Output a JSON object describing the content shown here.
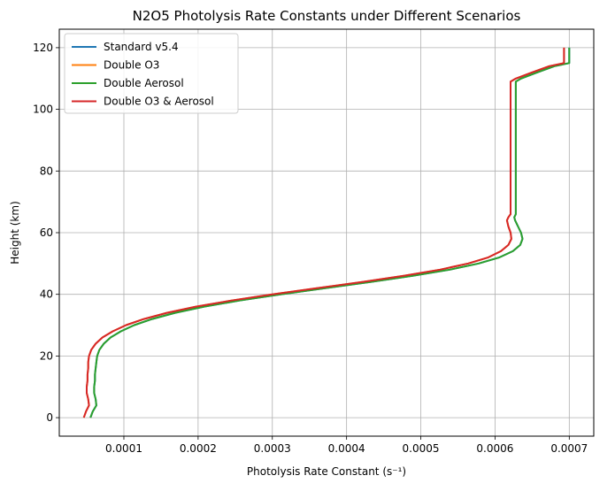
{
  "chart_data": {
    "type": "line",
    "title": "N2O5 Photolysis Rate Constants under Different Scenarios",
    "xlabel": "Photolysis Rate Constant (s⁻¹)",
    "ylabel": "Height (km)",
    "xlim": [
      1.3e-05,
      0.000733
    ],
    "ylim": [
      -6,
      126
    ],
    "xticks": [
      0.0001,
      0.0002,
      0.0003,
      0.0004,
      0.0005,
      0.0006,
      0.0007
    ],
    "xtick_labels": [
      "0.0001",
      "0.0002",
      "0.0003",
      "0.0004",
      "0.0005",
      "0.0006",
      "0.0007"
    ],
    "yticks": [
      0,
      20,
      40,
      60,
      80,
      100,
      120
    ],
    "ytick_labels": [
      "0",
      "20",
      "40",
      "60",
      "80",
      "100",
      "120"
    ],
    "grid": true,
    "legend_position": "upper-left",
    "y": [
      0,
      2,
      4,
      6,
      8,
      10,
      12,
      14,
      16,
      18,
      20,
      22,
      24,
      26,
      28,
      30,
      32,
      34,
      36,
      38,
      40,
      42,
      44,
      46,
      48,
      50,
      52,
      54,
      56,
      58,
      60,
      62,
      64,
      65,
      66,
      70,
      80,
      90,
      100,
      105,
      108,
      109,
      110,
      112,
      114,
      115,
      116,
      118,
      120
    ],
    "series": [
      {
        "name": "Standard v5.4",
        "color": "#1f77b4",
        "x": [
          5.5e-05,
          5.8e-05,
          6.3e-05,
          6.2e-05,
          6e-05,
          6e-05,
          6.1e-05,
          6.1e-05,
          6.2e-05,
          6.3e-05,
          6.4e-05,
          6.7e-05,
          7.3e-05,
          8.2e-05,
          9.6e-05,
          0.000114,
          0.000138,
          0.000169,
          0.000208,
          0.000256,
          0.000311,
          0.000371,
          0.000432,
          0.000489,
          0.000539,
          0.000578,
          0.000606,
          0.000624,
          0.000634,
          0.000637,
          0.000635,
          0.000631,
          0.000627,
          0.000626,
          0.000628,
          0.000628,
          0.000628,
          0.000628,
          0.000628,
          0.000628,
          0.000628,
          0.000628,
          0.000635,
          0.000657,
          0.00068,
          0.0007,
          0.0007,
          0.0007,
          0.0007
        ]
      },
      {
        "name": "Double O3",
        "color": "#ff7f0e",
        "x": [
          4.6e-05,
          4.9e-05,
          5.3e-05,
          5.2e-05,
          5e-05,
          5e-05,
          5.1e-05,
          5.1e-05,
          5.2e-05,
          5.2e-05,
          5.3e-05,
          5.6e-05,
          6.2e-05,
          7.1e-05,
          8.5e-05,
          0.000103,
          0.000127,
          0.000158,
          0.000197,
          0.000245,
          0.0003,
          0.00036,
          0.000421,
          0.000477,
          0.000526,
          0.000564,
          0.000591,
          0.000608,
          0.000618,
          0.000622,
          0.000621,
          0.000618,
          0.000616,
          0.000618,
          0.000621,
          0.000621,
          0.000621,
          0.000621,
          0.000621,
          0.000621,
          0.000621,
          0.000621,
          0.000628,
          0.00065,
          0.000673,
          0.000693,
          0.000693,
          0.000693,
          0.000693
        ]
      },
      {
        "name": "Double Aerosol",
        "color": "#2ca02c",
        "x": [
          5.5e-05,
          5.8e-05,
          6.3e-05,
          6.2e-05,
          6e-05,
          6e-05,
          6.1e-05,
          6.1e-05,
          6.2e-05,
          6.3e-05,
          6.4e-05,
          6.7e-05,
          7.3e-05,
          8.2e-05,
          9.6e-05,
          0.000114,
          0.000138,
          0.000169,
          0.000208,
          0.000256,
          0.000311,
          0.000371,
          0.000432,
          0.000489,
          0.000539,
          0.000578,
          0.000606,
          0.000624,
          0.000634,
          0.000637,
          0.000635,
          0.000631,
          0.000627,
          0.000626,
          0.000628,
          0.000628,
          0.000628,
          0.000628,
          0.000628,
          0.000628,
          0.000628,
          0.000628,
          0.000635,
          0.000657,
          0.00068,
          0.0007,
          0.0007,
          0.0007,
          0.0007
        ]
      },
      {
        "name": "Double O3 & Aerosol",
        "color": "#d62728",
        "x": [
          4.6e-05,
          4.9e-05,
          5.3e-05,
          5.2e-05,
          5e-05,
          5e-05,
          5.1e-05,
          5.1e-05,
          5.2e-05,
          5.2e-05,
          5.3e-05,
          5.6e-05,
          6.2e-05,
          7.1e-05,
          8.5e-05,
          0.000103,
          0.000127,
          0.000158,
          0.000197,
          0.000245,
          0.0003,
          0.00036,
          0.000421,
          0.000477,
          0.000526,
          0.000564,
          0.000591,
          0.000608,
          0.000618,
          0.000622,
          0.000621,
          0.000618,
          0.000616,
          0.000618,
          0.000621,
          0.000621,
          0.000621,
          0.000621,
          0.000621,
          0.000621,
          0.000621,
          0.000621,
          0.000628,
          0.00065,
          0.000673,
          0.000693,
          0.000693,
          0.000693,
          0.000693
        ]
      }
    ]
  }
}
